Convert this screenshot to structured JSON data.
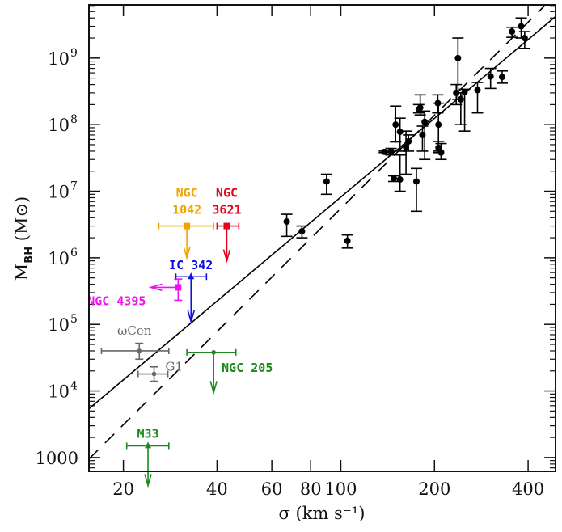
{
  "chart_data": {
    "type": "scatter",
    "title": "",
    "xlabel": "σ (km s⁻¹)",
    "ylabel": "M_BH (M⊙)",
    "xscale": "log",
    "yscale": "log",
    "xlim": [
      15.5,
      490
    ],
    "ylim": [
      620,
      6300000000
    ],
    "xticks": [
      {
        "value": 20,
        "label": "20"
      },
      {
        "value": 40,
        "label": "40"
      },
      {
        "value": 60,
        "label": "60"
      },
      {
        "value": 80,
        "label": "80"
      },
      {
        "value": 100,
        "label": "100"
      },
      {
        "value": 200,
        "label": "200"
      },
      {
        "value": 400,
        "label": "400"
      }
    ],
    "yticks": [
      {
        "value": 1000,
        "label": "1000",
        "exp": ""
      },
      {
        "value": 10000,
        "label": "10",
        "exp": "4"
      },
      {
        "value": 100000,
        "label": "10",
        "exp": "5"
      },
      {
        "value": 1000000,
        "label": "10",
        "exp": "6"
      },
      {
        "value": 10000000,
        "label": "10",
        "exp": "7"
      },
      {
        "value": 100000000,
        "label": "10",
        "exp": "8"
      },
      {
        "value": 1000000000,
        "label": "10",
        "exp": "9"
      }
    ],
    "grid": false,
    "fits": [
      {
        "name": "solid-fit",
        "style": "solid",
        "x": [
          15.5,
          490
        ],
        "y": [
          5400,
          4200000000
        ]
      },
      {
        "name": "dashed-fit",
        "style": "dashed",
        "x": [
          15.5,
          455
        ],
        "y": [
          950,
          6300000000
        ]
      }
    ],
    "series": [
      {
        "name": "detections",
        "color": "#000000",
        "points": [
          {
            "x": 67,
            "y": 3500000,
            "ylo": 2100000,
            "yhi": 4500000
          },
          {
            "x": 75,
            "y": 2500000,
            "ylo": 2000000,
            "yhi": 3000000
          },
          {
            "x": 90,
            "y": 14000000,
            "ylo": 9000000,
            "yhi": 18000000
          },
          {
            "x": 105,
            "y": 1800000,
            "ylo": 1400000,
            "yhi": 2200000
          },
          {
            "x": 138,
            "y": 39000000,
            "ylo": 38000000,
            "yhi": 40000000
          },
          {
            "x": 145,
            "y": 40000000,
            "ylo": 35000000,
            "yhi": 44000000
          },
          {
            "x": 148,
            "y": 15500000,
            "ylo": 14000000,
            "yhi": 17000000
          },
          {
            "x": 150,
            "y": 100000000,
            "ylo": 55000000,
            "yhi": 190000000
          },
          {
            "x": 155,
            "y": 78000000,
            "ylo": 40000000,
            "yhi": 125000000
          },
          {
            "x": 155,
            "y": 15000000,
            "ylo": 10000000,
            "yhi": 35000000
          },
          {
            "x": 162,
            "y": 46000000,
            "ylo": 18000000,
            "yhi": 80000000
          },
          {
            "x": 165,
            "y": 56000000,
            "ylo": 40000000,
            "yhi": 70000000
          },
          {
            "x": 175,
            "y": 14000000,
            "ylo": 5000000,
            "yhi": 22000000
          },
          {
            "x": 178,
            "y": 170000000,
            "ylo": 150000000,
            "yhi": 200000000
          },
          {
            "x": 180,
            "y": 180000000,
            "ylo": 140000000,
            "yhi": 280000000
          },
          {
            "x": 183,
            "y": 70000000,
            "ylo": 40000000,
            "yhi": 95000000
          },
          {
            "x": 186,
            "y": 110000000,
            "ylo": 30000000,
            "yhi": 160000000
          },
          {
            "x": 205,
            "y": 210000000,
            "ylo": 150000000,
            "yhi": 280000000
          },
          {
            "x": 206,
            "y": 100000000,
            "ylo": 40000000,
            "yhi": 210000000
          },
          {
            "x": 206,
            "y": 45000000,
            "ylo": 38000000,
            "yhi": 56000000
          },
          {
            "x": 210,
            "y": 38000000,
            "ylo": 30000000,
            "yhi": 52000000
          },
          {
            "x": 235,
            "y": 300000000,
            "ylo": 200000000,
            "yhi": 400000000
          },
          {
            "x": 238,
            "y": 1000000000,
            "ylo": 240000000,
            "yhi": 2000000000
          },
          {
            "x": 243,
            "y": 240000000,
            "ylo": 100000000,
            "yhi": 300000000
          },
          {
            "x": 250,
            "y": 310000000,
            "ylo": 80000000,
            "yhi": 340000000
          },
          {
            "x": 275,
            "y": 330000000,
            "ylo": 150000000,
            "yhi": 430000000
          },
          {
            "x": 303,
            "y": 530000000,
            "ylo": 350000000,
            "yhi": 700000000
          },
          {
            "x": 330,
            "y": 520000000,
            "ylo": 420000000,
            "yhi": 640000000
          },
          {
            "x": 355,
            "y": 2500000000,
            "ylo": 2050000000,
            "yhi": 2900000000
          },
          {
            "x": 380,
            "y": 3000000000,
            "ylo": 2000000000,
            "yhi": 4000000000
          },
          {
            "x": 390,
            "y": 2000000000,
            "ylo": 1400000000,
            "yhi": 2500000000
          }
        ]
      },
      {
        "name": "ωCen",
        "label": "ωCen",
        "color": "#666666",
        "marker": "circle",
        "points": [
          {
            "x": 22.5,
            "y": 40000,
            "xlo": 17,
            "xhi": 28,
            "ylo": 30000,
            "yhi": 52000
          }
        ]
      },
      {
        "name": "G1",
        "label": "G1",
        "color": "#666666",
        "marker": "circle",
        "points": [
          {
            "x": 25.1,
            "y": 18000,
            "xlo": 22.3,
            "xhi": 27.8,
            "ylo": 14000,
            "yhi": 23000
          }
        ]
      },
      {
        "name": "NGC 1042",
        "label": "NGC\n1042",
        "color": "#f0a400",
        "marker": "square",
        "upper_limit": true,
        "points": [
          {
            "x": 32,
            "y": 3000000,
            "xlo": 26,
            "xhi": 39,
            "limit_to": 1000000
          }
        ]
      },
      {
        "name": "NGC 3621",
        "label": "NGC\n3621",
        "color": "#e8001c",
        "marker": "square",
        "upper_limit": true,
        "points": [
          {
            "x": 43,
            "y": 3000000,
            "xlo": 40,
            "xhi": 47,
            "limit_to": 900000
          }
        ]
      },
      {
        "name": "IC 342",
        "label": "IC 342",
        "color": "#1010e0",
        "marker": "triangle",
        "upper_limit": true,
        "points": [
          {
            "x": 33,
            "y": 520000,
            "xlo": 29.5,
            "xhi": 37,
            "limit_to": 110000
          }
        ]
      },
      {
        "name": "NGC 4395",
        "label": "NGC 4395",
        "color": "#f010f0",
        "marker": "square",
        "left_limit": true,
        "points": [
          {
            "x": 30,
            "y": 360000,
            "ylo": 230000,
            "yhi": 480000,
            "xlimit_to": 24.5
          }
        ]
      },
      {
        "name": "NGC 205",
        "label": "NGC 205",
        "color": "#1a8a1a",
        "marker": "circle",
        "upper_limit": true,
        "points": [
          {
            "x": 39,
            "y": 38000,
            "xlo": 32,
            "xhi": 46,
            "limit_to": 9500
          }
        ]
      },
      {
        "name": "M33",
        "label": "M33",
        "color": "#1a8a1a",
        "marker": "triangle",
        "upper_limit": true,
        "points": [
          {
            "x": 24,
            "y": 1500,
            "xlo": 20.5,
            "xhi": 28,
            "limit_to": 380
          }
        ]
      }
    ]
  }
}
